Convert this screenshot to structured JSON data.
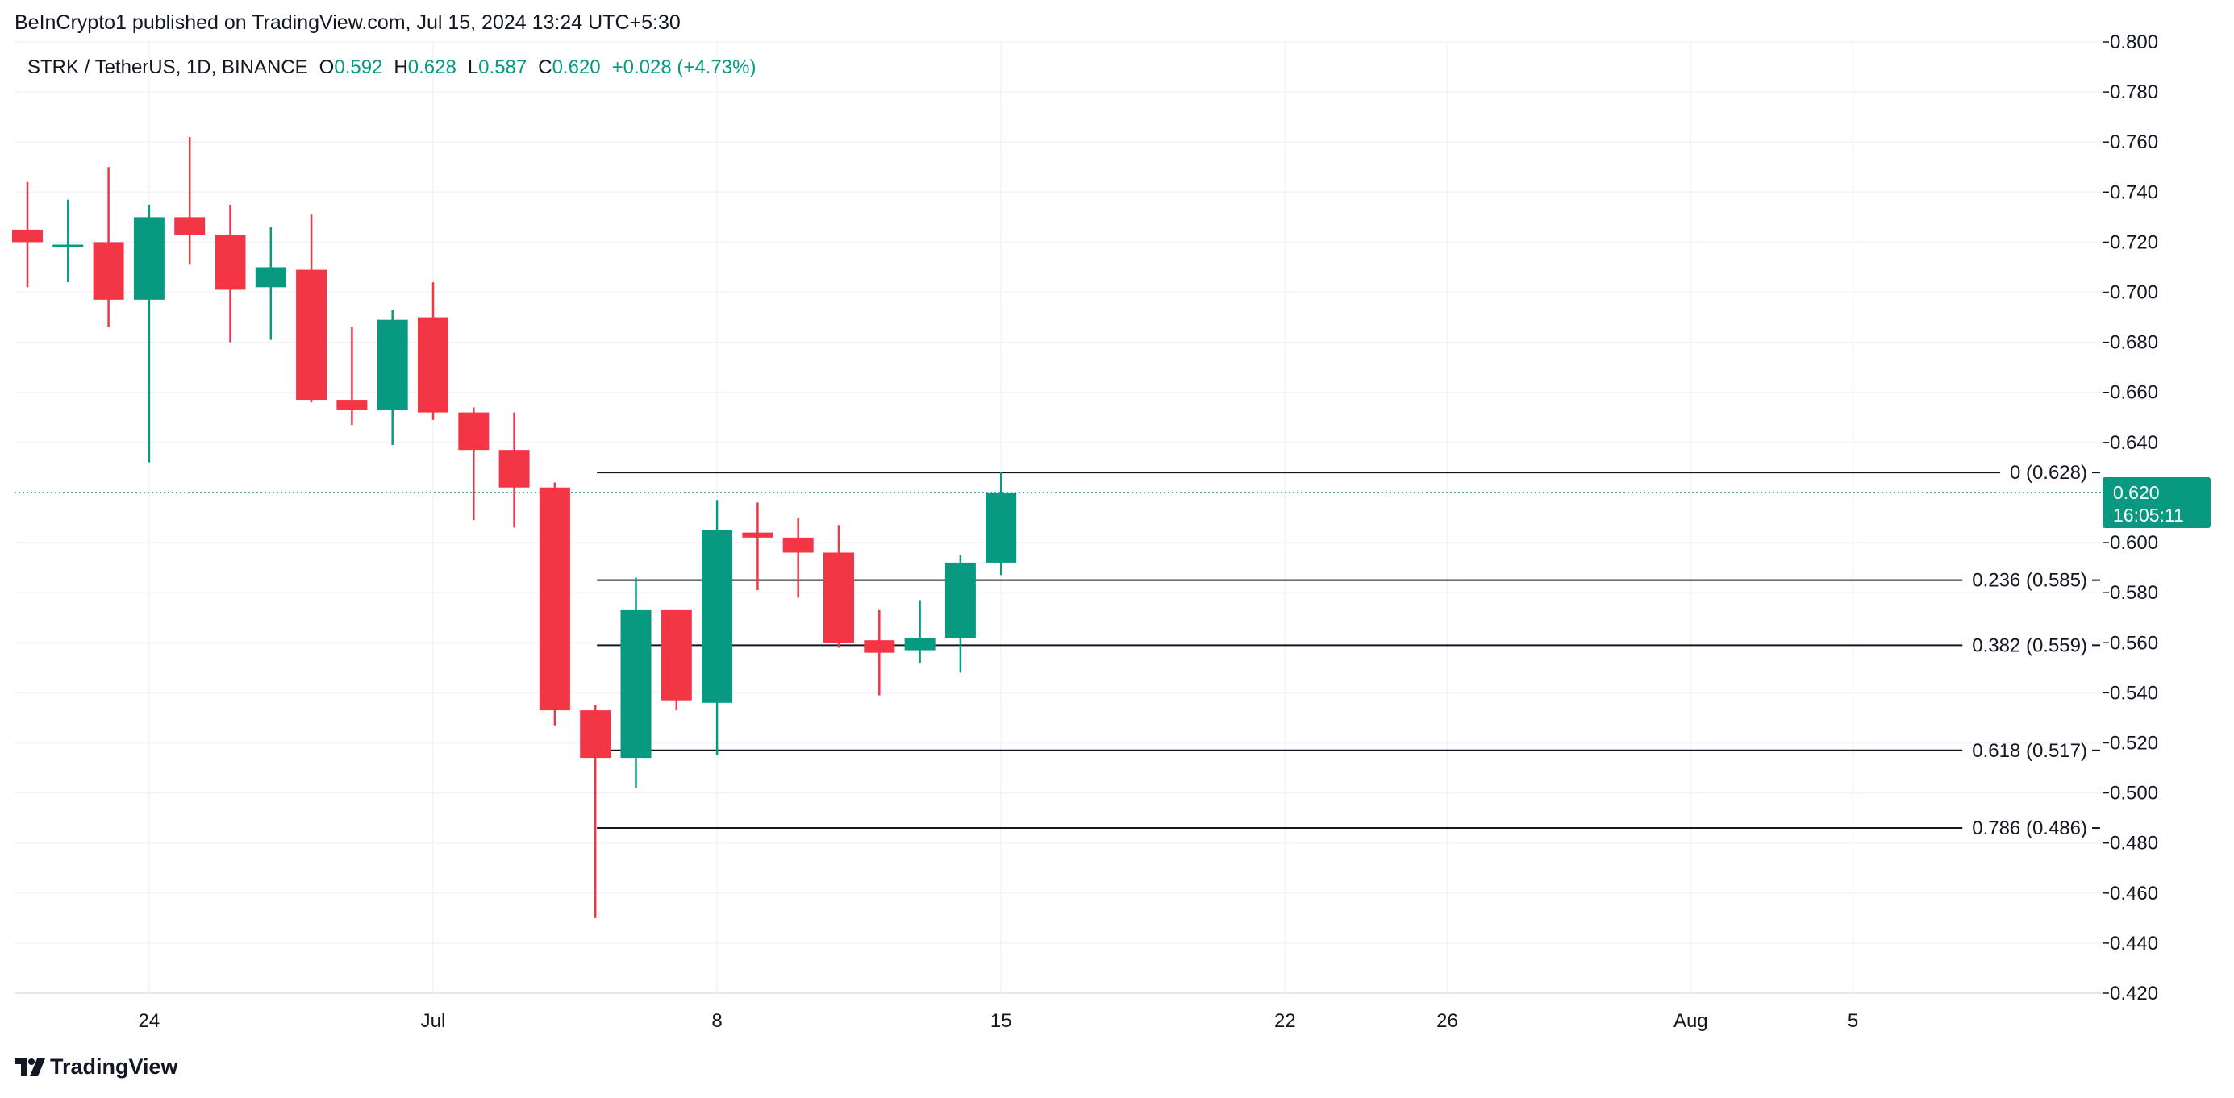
{
  "header": {
    "published": "BeInCrypto1 published on TradingView.com, Jul 15, 2024 13:24 UTC+5:30"
  },
  "legend": {
    "symbol": "STRK / TetherUS, 1D, BINANCE",
    "o_label": "O",
    "o_value": "0.592",
    "h_label": "H",
    "h_value": "0.628",
    "l_label": "L",
    "l_value": "0.587",
    "c_label": "C",
    "c_value": "0.620",
    "change": "+0.028 (+4.73%)"
  },
  "price_tag": {
    "price": "0.620",
    "countdown": "16:05:11"
  },
  "footer": {
    "brand": "TradingView"
  },
  "colors": {
    "up": "#089981",
    "down": "#F23645",
    "grid": "#F0F3FA",
    "fib_line": "#131722",
    "current_price_line": "#089981"
  },
  "chart_data": {
    "type": "candlestick",
    "title": "STRK / TetherUS, 1D, BINANCE",
    "ylim": [
      0.42,
      0.8
    ],
    "y_ticks": [
      "0.800",
      "0.780",
      "0.760",
      "0.740",
      "0.720",
      "0.700",
      "0.680",
      "0.660",
      "0.640",
      "0.600",
      "0.580",
      "0.560",
      "0.540",
      "0.520",
      "0.500",
      "0.480",
      "0.460",
      "0.440",
      "0.420"
    ],
    "x_ticks": [
      {
        "label": "24",
        "index": 3
      },
      {
        "label": "Jul",
        "index": 10
      },
      {
        "label": "8",
        "index": 17
      },
      {
        "label": "15",
        "index": 24
      },
      {
        "label": "22",
        "index": 31
      },
      {
        "label": "26",
        "index": 35
      },
      {
        "label": "Aug",
        "index": 41
      },
      {
        "label": "5",
        "index": 45
      }
    ],
    "candles": [
      {
        "o": 0.725,
        "h": 0.744,
        "l": 0.702,
        "c": 0.72
      },
      {
        "o": 0.719,
        "h": 0.737,
        "l": 0.704,
        "c": 0.719
      },
      {
        "o": 0.72,
        "h": 0.75,
        "l": 0.686,
        "c": 0.697
      },
      {
        "o": 0.697,
        "h": 0.735,
        "l": 0.632,
        "c": 0.73
      },
      {
        "o": 0.73,
        "h": 0.762,
        "l": 0.711,
        "c": 0.723
      },
      {
        "o": 0.723,
        "h": 0.735,
        "l": 0.68,
        "c": 0.701
      },
      {
        "o": 0.702,
        "h": 0.726,
        "l": 0.681,
        "c": 0.71
      },
      {
        "o": 0.709,
        "h": 0.731,
        "l": 0.656,
        "c": 0.657
      },
      {
        "o": 0.657,
        "h": 0.686,
        "l": 0.647,
        "c": 0.653
      },
      {
        "o": 0.653,
        "h": 0.693,
        "l": 0.639,
        "c": 0.689
      },
      {
        "o": 0.69,
        "h": 0.704,
        "l": 0.649,
        "c": 0.652
      },
      {
        "o": 0.652,
        "h": 0.654,
        "l": 0.609,
        "c": 0.637
      },
      {
        "o": 0.637,
        "h": 0.652,
        "l": 0.606,
        "c": 0.622
      },
      {
        "o": 0.622,
        "h": 0.624,
        "l": 0.527,
        "c": 0.533
      },
      {
        "o": 0.533,
        "h": 0.535,
        "l": 0.45,
        "c": 0.514
      },
      {
        "o": 0.514,
        "h": 0.586,
        "l": 0.502,
        "c": 0.573
      },
      {
        "o": 0.573,
        "h": 0.573,
        "l": 0.533,
        "c": 0.537
      },
      {
        "o": 0.536,
        "h": 0.617,
        "l": 0.515,
        "c": 0.605
      },
      {
        "o": 0.604,
        "h": 0.616,
        "l": 0.581,
        "c": 0.602
      },
      {
        "o": 0.602,
        "h": 0.61,
        "l": 0.578,
        "c": 0.596
      },
      {
        "o": 0.596,
        "h": 0.607,
        "l": 0.558,
        "c": 0.56
      },
      {
        "o": 0.561,
        "h": 0.573,
        "l": 0.539,
        "c": 0.556
      },
      {
        "o": 0.557,
        "h": 0.577,
        "l": 0.552,
        "c": 0.562
      },
      {
        "o": 0.562,
        "h": 0.595,
        "l": 0.548,
        "c": 0.592
      },
      {
        "o": 0.592,
        "h": 0.628,
        "l": 0.587,
        "c": 0.62
      }
    ],
    "fib_levels": [
      {
        "ratio": "0",
        "price": 0.628,
        "label": "0 (0.628)"
      },
      {
        "ratio": "0.236",
        "price": 0.585,
        "label": "0.236 (0.585)"
      },
      {
        "ratio": "0.382",
        "price": 0.559,
        "label": "0.382 (0.559)"
      },
      {
        "ratio": "0.618",
        "price": 0.517,
        "label": "0.618 (0.517)"
      },
      {
        "ratio": "0.786",
        "price": 0.486,
        "label": "0.786 (0.486)"
      }
    ],
    "current_price": 0.62
  }
}
